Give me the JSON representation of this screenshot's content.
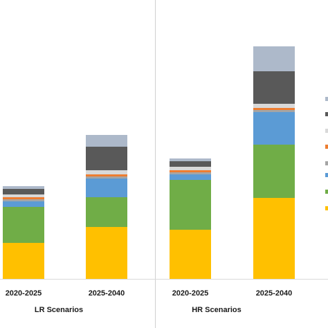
{
  "chart_data": {
    "type": "bar",
    "stacked": true,
    "title": "",
    "xlabel": "",
    "ylabel": "",
    "ylim": [
      0,
      340
    ],
    "grid": false,
    "legend": "right (cropped)",
    "groups": [
      {
        "label": "LR Scenarios",
        "categories": [
          "2020-2025",
          "2025-2040"
        ]
      },
      {
        "label": "HR Scenarios",
        "categories": [
          "2020-2025",
          "2025-2040"
        ]
      }
    ],
    "categories": [
      "2020-2025",
      "2025-2040",
      "2020-2025",
      "2025-2040"
    ],
    "series": [
      {
        "color": "#ffc000",
        "values": [
          52,
          75,
          71,
          117
        ]
      },
      {
        "color": "#70ad47",
        "values": [
          52,
          43,
          72,
          77
        ]
      },
      {
        "color": "#5b9bd5",
        "values": [
          8,
          27,
          8,
          47
        ]
      },
      {
        "color": "#a5a5a5",
        "values": [
          3,
          3,
          3,
          3
        ]
      },
      {
        "color": "#ed7d31",
        "values": [
          3,
          3,
          3,
          3
        ]
      },
      {
        "color": "#d9d9d9",
        "values": [
          4,
          6,
          5,
          6
        ]
      },
      {
        "color": "#595959",
        "values": [
          8,
          34,
          8,
          47
        ]
      },
      {
        "color": "#adb9ca",
        "values": [
          4,
          17,
          4,
          36
        ]
      }
    ]
  }
}
